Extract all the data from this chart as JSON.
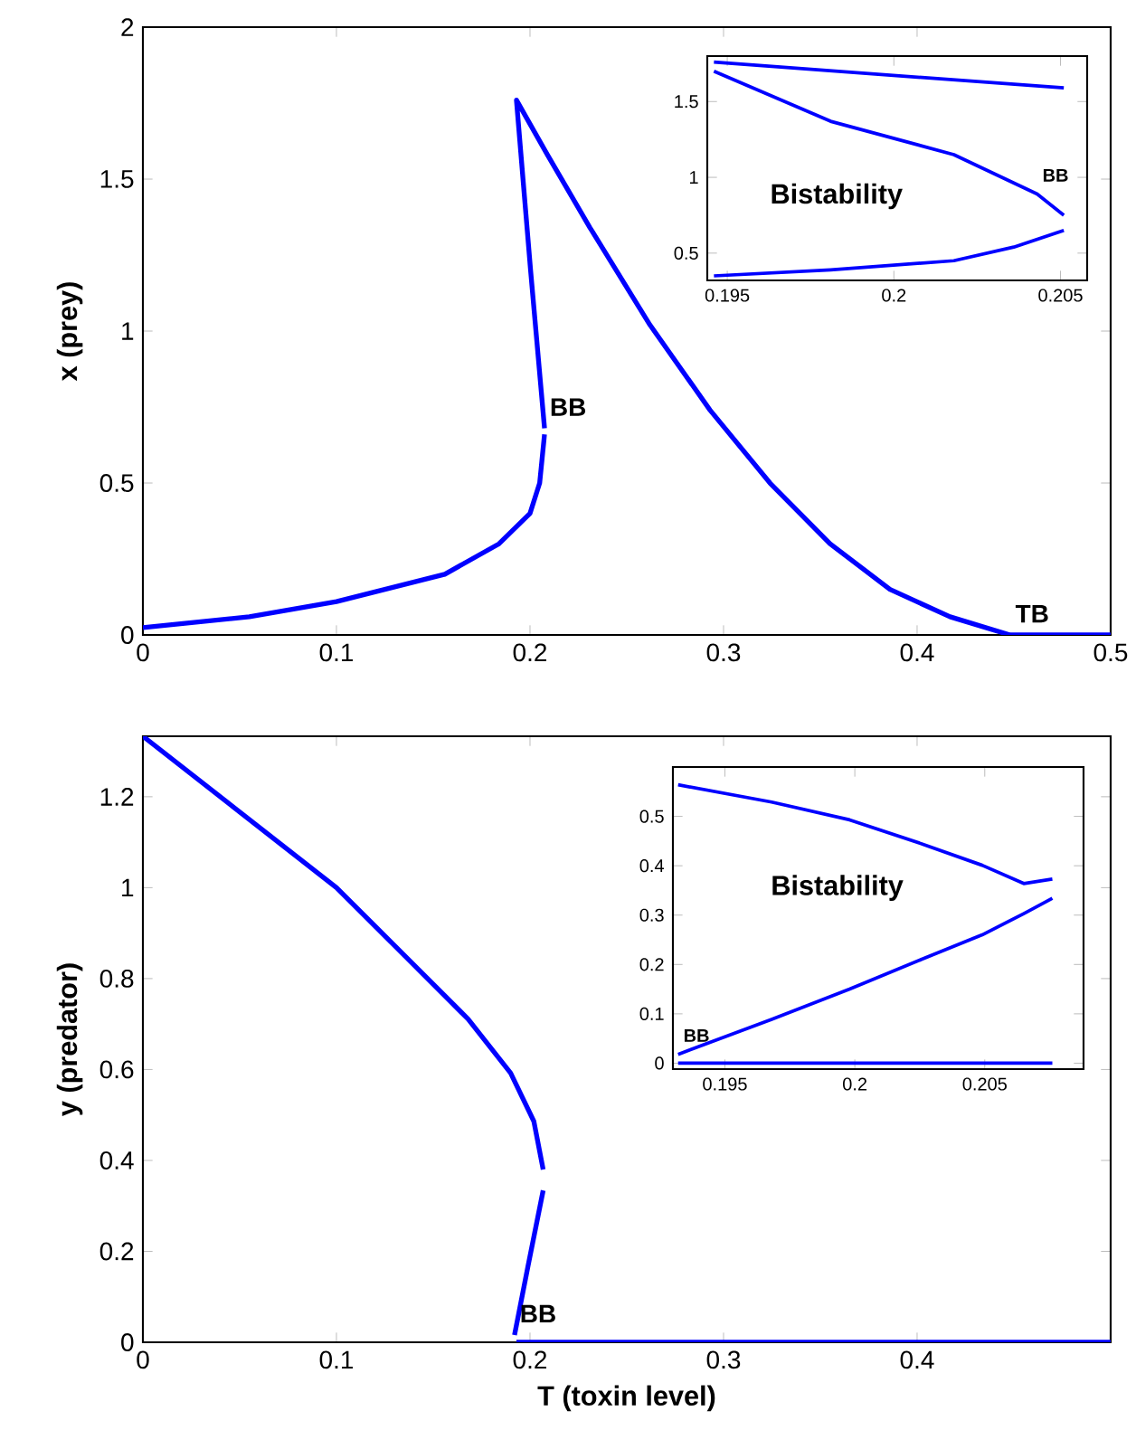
{
  "chart_data": [
    {
      "type": "line",
      "ylabel": "x (prey)",
      "xlim": [
        0,
        0.5
      ],
      "xticks": [
        0,
        0.1,
        0.2,
        0.3,
        0.4,
        0.5
      ],
      "ylim": [
        0,
        2
      ],
      "yticks": [
        0,
        0.5,
        1,
        1.5,
        2
      ],
      "grid": false,
      "marker": "none",
      "series": [
        {
          "color": "#0000ff",
          "x": [
            0,
            0.055,
            0.1,
            0.156,
            0.184,
            0.2,
            0.205,
            0.2075
          ],
          "values": [
            0.024,
            0.06,
            0.11,
            0.2,
            0.3,
            0.4,
            0.5,
            0.66
          ]
        },
        {
          "color": "#0000ff",
          "x": [
            0.2075,
            0.2003,
            0.193,
            0.209,
            0.231,
            0.262,
            0.293,
            0.324,
            0.355,
            0.386,
            0.417,
            0.448,
            0.5
          ],
          "values": [
            0.68,
            1.2,
            1.76,
            1.58,
            1.34,
            1.02,
            0.74,
            0.5,
            0.3,
            0.15,
            0.06,
            0,
            0
          ]
        }
      ],
      "annotations": [
        {
          "text": "BB",
          "x": 0.2075,
          "y": 0.68
        },
        {
          "text": "TB",
          "x": 0.448,
          "y": 0
        }
      ]
    },
    {
      "type": "line",
      "xlim": [
        0.1944,
        0.2058
      ],
      "xticks": [
        0.195,
        0.2,
        0.205
      ],
      "ylim": [
        0.32,
        1.8
      ],
      "yticks": [
        0.5,
        1,
        1.5
      ],
      "grid": false,
      "marker": "none",
      "series": [
        {
          "color": "#0000ff",
          "x": [
            0.1946,
            0.2051
          ],
          "values": [
            1.76,
            1.59
          ]
        },
        {
          "color": "#0000ff",
          "x": [
            0.1946,
            0.1981,
            0.2018,
            0.2043,
            0.2051
          ],
          "values": [
            1.7,
            1.37,
            1.15,
            0.89,
            0.75
          ]
        },
        {
          "color": "#0000ff",
          "x": [
            0.1946,
            0.1981,
            0.2018,
            0.2036,
            0.2051
          ],
          "values": [
            0.35,
            0.39,
            0.45,
            0.54,
            0.65
          ]
        }
      ],
      "annotations": [
        "Bistability",
        {
          "text": "BB",
          "x": 0.2043,
          "y": 0.89
        }
      ]
    },
    {
      "type": "line",
      "xlabel": "T (toxin level)",
      "ylabel": "y (predator)",
      "xlim": [
        0,
        0.5
      ],
      "xticks": [
        0,
        0.1,
        0.2,
        0.3,
        0.4
      ],
      "ylim": [
        0,
        1.333
      ],
      "yticks": [
        0,
        0.2,
        0.4,
        0.6,
        0.8,
        1,
        1.2
      ],
      "grid": false,
      "marker": "none",
      "series": [
        {
          "color": "#0000ff",
          "x": [
            0,
            0.1,
            0.137,
            0.168,
            0.19,
            0.202,
            0.2068
          ],
          "values": [
            1.333,
            1.0,
            0.843,
            0.711,
            0.592,
            0.486,
            0.38
          ]
        },
        {
          "color": "#0000ff",
          "x": [
            0.2068,
            0.199,
            0.192
          ],
          "values": [
            0.334,
            0.168,
            0.016
          ]
        },
        {
          "color": "#0000ff",
          "x": [
            0.193,
            0.5
          ],
          "values": [
            0,
            0
          ]
        }
      ],
      "annotations": [
        {
          "text": "BB",
          "x": 0.192,
          "y": 0.016
        }
      ]
    },
    {
      "type": "line",
      "xlim": [
        0.193,
        0.2088
      ],
      "xticks": [
        0.195,
        0.2,
        0.205
      ],
      "ylim": [
        -0.012,
        0.6
      ],
      "yticks": [
        0,
        0.1,
        0.2,
        0.3,
        0.4,
        0.5
      ],
      "grid": false,
      "marker": "none",
      "series": [
        {
          "color": "#0000ff",
          "x": [
            0.1932,
            0.1968,
            0.1998,
            0.2026,
            0.2049,
            0.2065,
            0.2076
          ],
          "values": [
            0.564,
            0.529,
            0.493,
            0.444,
            0.401,
            0.364,
            0.373
          ]
        },
        {
          "color": "#0000ff",
          "x": [
            0.1932,
            0.1968,
            0.1998,
            0.2026,
            0.2049,
            0.2065,
            0.2076
          ],
          "values": [
            0.018,
            0.089,
            0.15,
            0.211,
            0.26,
            0.303,
            0.334
          ]
        },
        {
          "color": "#0000ff",
          "x": [
            0.1932,
            0.2076
          ],
          "values": [
            0,
            0
          ]
        }
      ],
      "annotations": [
        "Bistability",
        {
          "text": "BB",
          "x": 0.1932,
          "y": 0.018
        }
      ]
    }
  ]
}
